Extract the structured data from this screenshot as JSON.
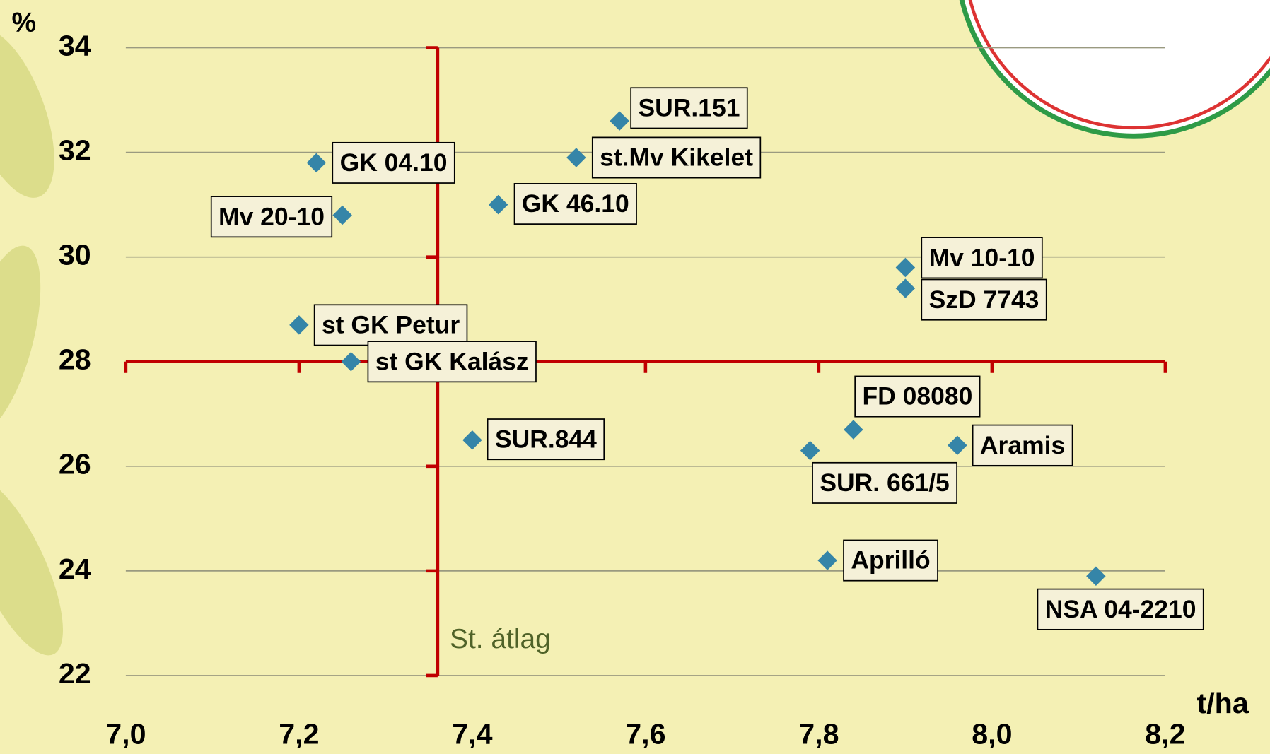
{
  "chart_data": {
    "type": "scatter",
    "x_label": "t/ha",
    "y_label": "%",
    "xlim": [
      7.0,
      8.2
    ],
    "xticks": [
      {
        "value": 7.0,
        "label": "7,0"
      },
      {
        "value": 7.2,
        "label": "7,2"
      },
      {
        "value": 7.4,
        "label": "7,4"
      },
      {
        "value": 7.6,
        "label": "7,6"
      },
      {
        "value": 7.8,
        "label": "7,8"
      },
      {
        "value": 8.0,
        "label": "8,0"
      },
      {
        "value": 8.2,
        "label": "8,2"
      }
    ],
    "ylim": [
      22,
      34
    ],
    "yticks": [
      22,
      24,
      26,
      28,
      30,
      32,
      34
    ],
    "grid": true,
    "color": "#3585a8",
    "reference_color": "#c00000",
    "ref_x": 7.36,
    "ref_y": 28,
    "ref_label": "St. átlag",
    "labels": [
      "GK 04.10",
      "Mv 20-10",
      "SUR.151",
      "st.Mv Kikelet",
      "GK 46.10",
      "Mv 10-10",
      "SzD 7743",
      "st GK Petur",
      "st GK Kalász",
      "SUR.844",
      "FD 08080",
      "SUR. 661/5",
      "Aramis",
      "Aprilló",
      "NSA 04-2210"
    ],
    "x": [
      7.22,
      7.25,
      7.57,
      7.52,
      7.43,
      7.9,
      7.9,
      7.2,
      7.26,
      7.4,
      7.84,
      7.79,
      7.96,
      7.81,
      8.12
    ],
    "values": [
      31.8,
      30.8,
      32.6,
      31.9,
      31.0,
      29.8,
      29.4,
      28.7,
      28.0,
      26.5,
      26.7,
      26.3,
      26.4,
      24.2,
      23.9
    ]
  }
}
